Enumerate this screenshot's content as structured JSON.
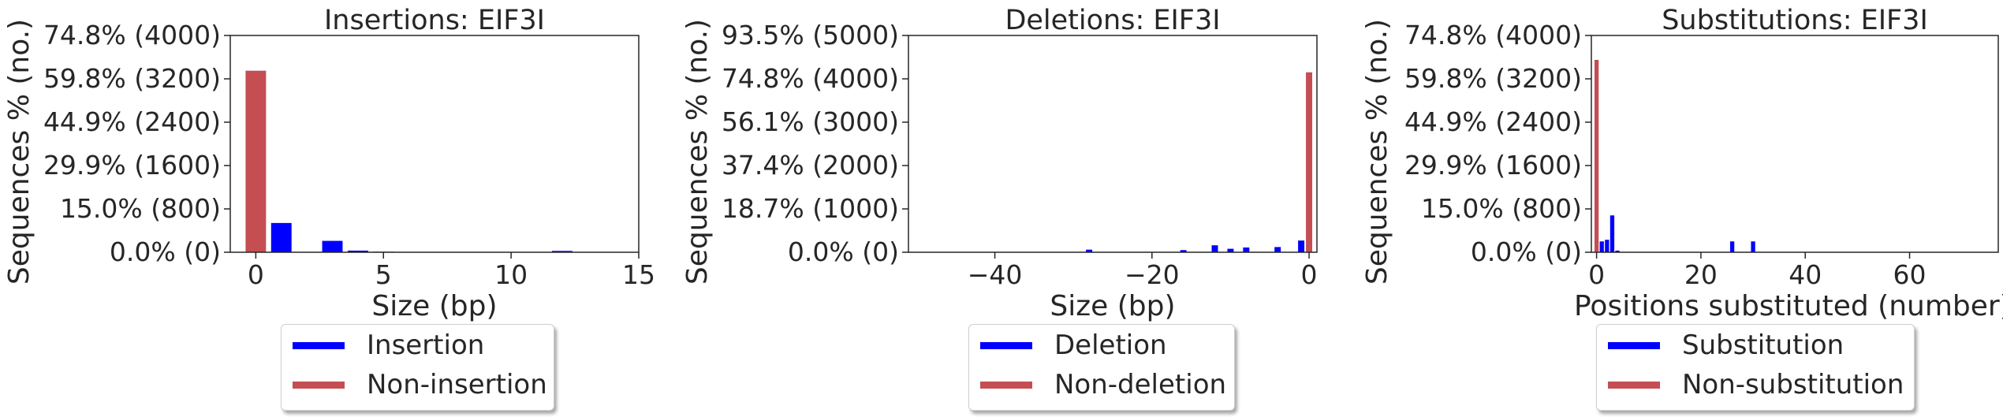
{
  "charts": [
    {
      "type": "bar",
      "title": "Insertions: EIF3I",
      "xlabel": "Size (bp)",
      "ylabel": "Sequences % (no.)",
      "xlim": [
        -1,
        15
      ],
      "ylim": [
        0,
        4000
      ],
      "xticks": [
        0,
        5,
        10,
        15
      ],
      "yticks": [
        0,
        800,
        1600,
        2400,
        3200,
        4000
      ],
      "ytick_labels": [
        "0.0% (0)",
        "15.0% (800)",
        "29.9% (1600)",
        "44.9% (2400)",
        "59.8% (3200)",
        "74.8% (4000)"
      ],
      "legend": [
        "Insertion",
        "Non-insertion"
      ],
      "colors": {
        "Insertion": "#0000ff",
        "Non-insertion": "#c44e52"
      },
      "series": [
        {
          "name": "Non-insertion",
          "bar_width": 0.8,
          "points": [
            [
              0,
              3350
            ]
          ]
        },
        {
          "name": "Insertion",
          "bar_width": 0.8,
          "points": [
            [
              1,
              540
            ],
            [
              3,
              210
            ],
            [
              4,
              30
            ],
            [
              5,
              10
            ],
            [
              12,
              25
            ]
          ]
        }
      ]
    },
    {
      "type": "bar",
      "title": "Deletions: EIF3I",
      "xlabel": "Size (bp)",
      "ylabel": "Sequences % (no.)",
      "xlim": [
        -51,
        1
      ],
      "ylim": [
        0,
        5000
      ],
      "xticks": [
        -40,
        -20,
        0
      ],
      "yticks": [
        0,
        1000,
        2000,
        3000,
        4000,
        5000
      ],
      "ytick_labels": [
        "0.0% (0)",
        "18.7% (1000)",
        "37.4% (2000)",
        "56.1% (3000)",
        "74.8% (4000)",
        "93.5% (5000)"
      ],
      "legend": [
        "Deletion",
        "Non-deletion"
      ],
      "colors": {
        "Deletion": "#0000ff",
        "Non-deletion": "#c44e52"
      },
      "series": [
        {
          "name": "Non-deletion",
          "bar_width": 0.8,
          "points": [
            [
              0,
              4150
            ]
          ]
        },
        {
          "name": "Deletion",
          "bar_width": 0.8,
          "points": [
            [
              -28,
              60
            ],
            [
              -16,
              50
            ],
            [
              -12,
              160
            ],
            [
              -10,
              80
            ],
            [
              -8,
              110
            ],
            [
              -4,
              120
            ],
            [
              -1,
              270
            ]
          ]
        }
      ]
    },
    {
      "type": "bar",
      "title": "Substitutions: EIF3I",
      "xlabel": "Positions substituted (number)",
      "ylabel": "Sequences % (no.)",
      "xlim": [
        -1,
        77
      ],
      "ylim": [
        0,
        4000
      ],
      "xticks": [
        0,
        20,
        40,
        60
      ],
      "yticks": [
        0,
        800,
        1600,
        2400,
        3200,
        4000
      ],
      "ytick_labels": [
        "0.0% (0)",
        "15.0% (800)",
        "29.9% (1600)",
        "44.9% (2400)",
        "59.8% (3200)",
        "74.8% (4000)"
      ],
      "legend": [
        "Substitution",
        "Non-substitution"
      ],
      "colors": {
        "Substitution": "#0000ff",
        "Non-substitution": "#c44e52"
      },
      "series": [
        {
          "name": "Non-substitution",
          "bar_width": 0.8,
          "points": [
            [
              0,
              3550
            ]
          ]
        },
        {
          "name": "Substitution",
          "bar_width": 0.8,
          "points": [
            [
              1,
              200
            ],
            [
              2,
              230
            ],
            [
              3,
              680
            ],
            [
              4,
              30
            ],
            [
              26,
              200
            ],
            [
              30,
              200
            ]
          ]
        }
      ]
    }
  ]
}
